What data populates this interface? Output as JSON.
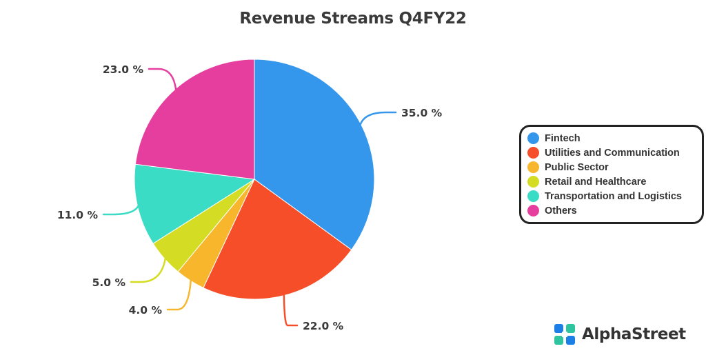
{
  "chart_data": {
    "type": "pie",
    "title": "Revenue Streams Q4FY22",
    "categories": [
      "Fintech",
      "Utilities and Communication",
      "Public Sector",
      "Retail and Healthcare",
      "Transportation and Logistics",
      "Others"
    ],
    "values": [
      35.0,
      22.0,
      4.0,
      5.0,
      11.0,
      23.0
    ],
    "value_labels": [
      "35.0 %",
      "22.0 %",
      "4.0 %",
      "5.0 %",
      "11.0 %",
      "23.0 %"
    ],
    "colors": [
      "#3597EC",
      "#F74E2A",
      "#F8B62D",
      "#D4DD24",
      "#3BDCC5",
      "#E53E9F"
    ],
    "legend_position": "right",
    "start_angle": "top",
    "direction": "clockwise"
  },
  "brand": {
    "name": "AlphaStreet",
    "logo_icon": "alphastreet-logo-icon",
    "logo_colors": [
      "#1C7FE6",
      "#2EC4A0"
    ]
  }
}
